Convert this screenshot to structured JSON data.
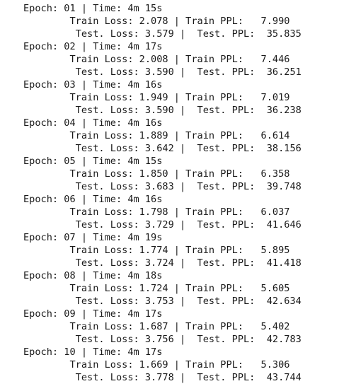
{
  "log": {
    "lines": [
      "Epoch: 01 | Time: 4m 15s",
      "        Train Loss: 2.078 | Train PPL:   7.990",
      "         Test. Loss: 3.579 |  Test. PPL:  35.835",
      "Epoch: 02 | Time: 4m 17s",
      "        Train Loss: 2.008 | Train PPL:   7.446",
      "         Test. Loss: 3.590 |  Test. PPL:  36.251",
      "Epoch: 03 | Time: 4m 16s",
      "        Train Loss: 1.949 | Train PPL:   7.019",
      "         Test. Loss: 3.590 |  Test. PPL:  36.238",
      "Epoch: 04 | Time: 4m 16s",
      "        Train Loss: 1.889 | Train PPL:   6.614",
      "         Test. Loss: 3.642 |  Test. PPL:  38.156",
      "Epoch: 05 | Time: 4m 15s",
      "        Train Loss: 1.850 | Train PPL:   6.358",
      "         Test. Loss: 3.683 |  Test. PPL:  39.748",
      "Epoch: 06 | Time: 4m 16s",
      "        Train Loss: 1.798 | Train PPL:   6.037",
      "         Test. Loss: 3.729 |  Test. PPL:  41.646",
      "Epoch: 07 | Time: 4m 19s",
      "        Train Loss: 1.774 | Train PPL:   5.895",
      "         Test. Loss: 3.724 |  Test. PPL:  41.418",
      "Epoch: 08 | Time: 4m 18s",
      "        Train Loss: 1.724 | Train PPL:   5.605",
      "         Test. Loss: 3.753 |  Test. PPL:  42.634",
      "Epoch: 09 | Time: 4m 17s",
      "        Train Loss: 1.687 | Train PPL:   5.402",
      "         Test. Loss: 3.756 |  Test. PPL:  42.783",
      "Epoch: 10 | Time: 4m 17s",
      "        Train Loss: 1.669 | Train PPL:   5.306",
      "         Test. Loss: 3.778 |  Test. PPL:  43.744"
    ]
  }
}
